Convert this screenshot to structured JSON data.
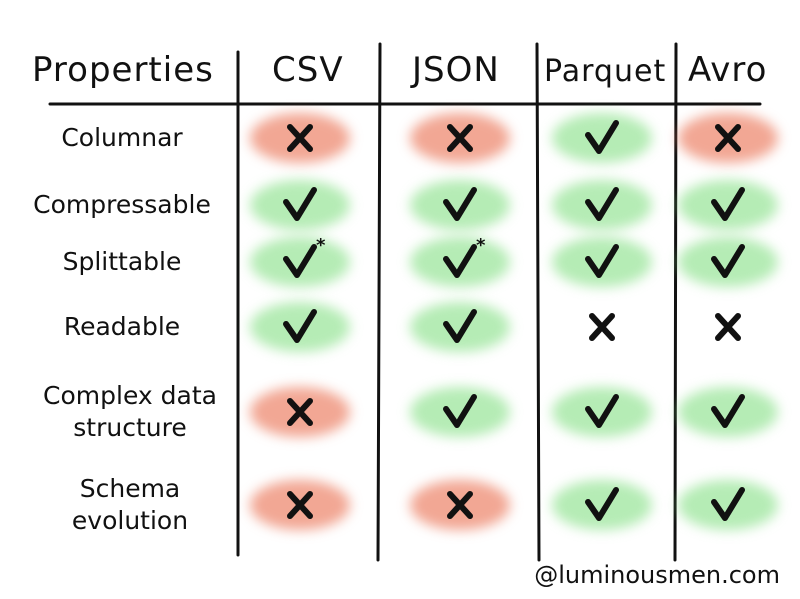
{
  "headers": {
    "properties": "Properties",
    "formats": [
      "CSV",
      "JSON",
      "Parquet",
      "Avro"
    ]
  },
  "rows": [
    {
      "label": "Columnar",
      "cells": [
        {
          "mark": "x",
          "bg": "red"
        },
        {
          "mark": "x",
          "bg": "red"
        },
        {
          "mark": "check",
          "bg": "green"
        },
        {
          "mark": "x",
          "bg": "red"
        }
      ]
    },
    {
      "label": "Compressable",
      "cells": [
        {
          "mark": "check",
          "bg": "green"
        },
        {
          "mark": "check",
          "bg": "green"
        },
        {
          "mark": "check",
          "bg": "green"
        },
        {
          "mark": "check",
          "bg": "green"
        }
      ]
    },
    {
      "label": "Splittable",
      "cells": [
        {
          "mark": "check",
          "bg": "green",
          "asterisk": "*"
        },
        {
          "mark": "check",
          "bg": "green",
          "asterisk": "*"
        },
        {
          "mark": "check",
          "bg": "green"
        },
        {
          "mark": "check",
          "bg": "green"
        }
      ]
    },
    {
      "label": "Readable",
      "cells": [
        {
          "mark": "check",
          "bg": "green"
        },
        {
          "mark": "check",
          "bg": "green"
        },
        {
          "mark": "x",
          "bg": "none"
        },
        {
          "mark": "x",
          "bg": "none"
        }
      ]
    },
    {
      "label": "Complex data\nstructure",
      "cells": [
        {
          "mark": "x",
          "bg": "red"
        },
        {
          "mark": "check",
          "bg": "green"
        },
        {
          "mark": "check",
          "bg": "green"
        },
        {
          "mark": "check",
          "bg": "green"
        }
      ]
    },
    {
      "label": "Schema\nevolution",
      "cells": [
        {
          "mark": "x",
          "bg": "red"
        },
        {
          "mark": "x",
          "bg": "red"
        },
        {
          "mark": "check",
          "bg": "green"
        },
        {
          "mark": "check",
          "bg": "green"
        }
      ]
    }
  ],
  "footer": "@luminousmen.com",
  "colors": {
    "green": "#78dc78",
    "red": "#eb785a",
    "ink": "#111111"
  }
}
